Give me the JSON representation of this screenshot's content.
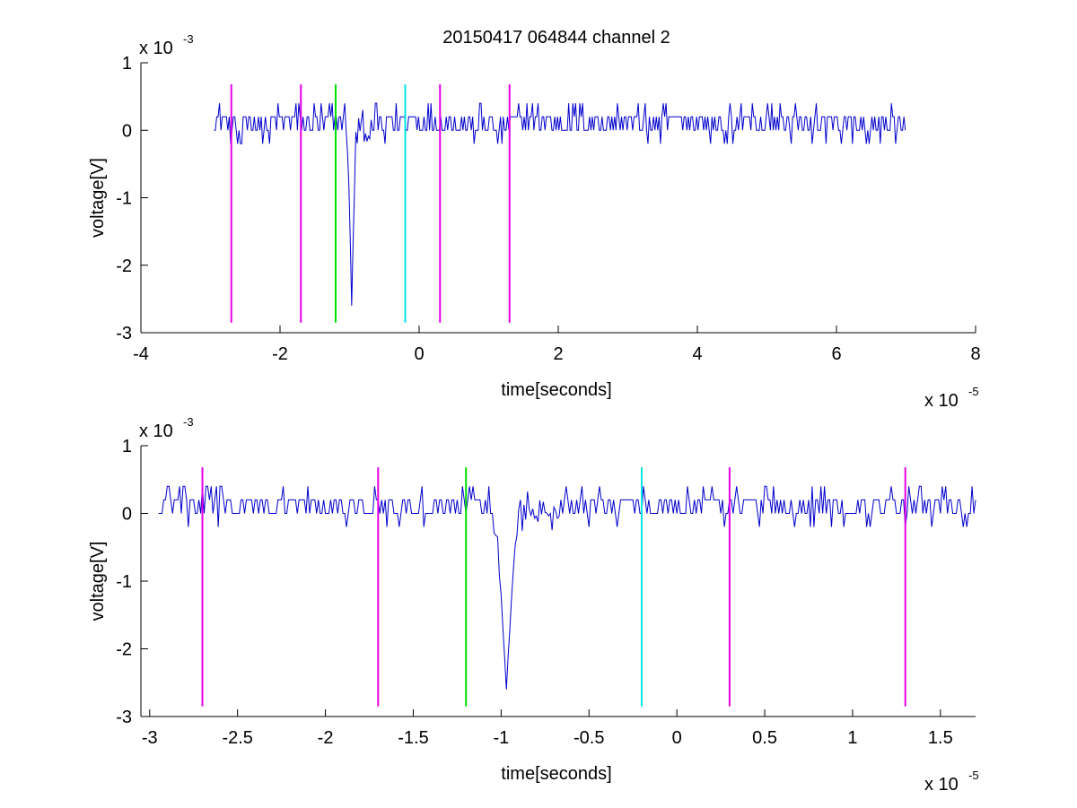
{
  "title": "20150417 064844 channel 2",
  "chart_data": [
    {
      "type": "line",
      "title": "20150417 064844 channel 2",
      "xlabel": "time[seconds]",
      "ylabel": "voltage[V]",
      "x_exponent_base": "x 10",
      "x_exponent": "-5",
      "y_exponent_base": "x 10",
      "y_exponent": "-3",
      "xlim": [
        -4,
        8
      ],
      "ylim": [
        -3,
        1
      ],
      "xticks": [
        -4,
        -2,
        0,
        2,
        4,
        6,
        8
      ],
      "xtick_labels": [
        "-4",
        "-2",
        "0",
        "2",
        "4",
        "6",
        "8"
      ],
      "yticks": [
        -3,
        -2,
        -1,
        0,
        1
      ],
      "ytick_labels": [
        "-3",
        "-2",
        "-1",
        "0",
        "1"
      ],
      "signal": {
        "color": "#0000cc",
        "x_range": [
          -2.95,
          7.0
        ],
        "baseline": 0.1,
        "noise_levels": [
          0,
          0.2,
          0.4,
          -0.2
        ],
        "spike": {
          "x": -0.97,
          "min": -2.6
        }
      },
      "markers": [
        {
          "x": -2.7,
          "color": "#e600e6"
        },
        {
          "x": -1.7,
          "color": "#e600e6"
        },
        {
          "x": -1.2,
          "color": "#00dd00"
        },
        {
          "x": -0.2,
          "color": "#00e6e6"
        },
        {
          "x": 0.3,
          "color": "#e600e6"
        },
        {
          "x": 1.3,
          "color": "#e600e6"
        }
      ],
      "marker_y_range": [
        -2.85,
        0.68
      ]
    },
    {
      "type": "line",
      "title": "",
      "xlabel": "time[seconds]",
      "ylabel": "voltage[V]",
      "x_exponent_base": "x 10",
      "x_exponent": "-5",
      "y_exponent_base": "x 10",
      "y_exponent": "-3",
      "xlim": [
        -3.05,
        1.7
      ],
      "ylim": [
        -3,
        1
      ],
      "xticks": [
        -3,
        -2.5,
        -2,
        -1.5,
        -1,
        -0.5,
        0,
        0.5,
        1,
        1.5
      ],
      "xtick_labels": [
        "-3",
        "-2.5",
        "-2",
        "-1.5",
        "-1",
        "-0.5",
        "0",
        "0.5",
        "1",
        "1.5"
      ],
      "yticks": [
        -3,
        -2,
        -1,
        0,
        1
      ],
      "ytick_labels": [
        "-3",
        "-2",
        "-1",
        "0",
        "1"
      ],
      "signal": {
        "color": "#0000cc",
        "x_range": [
          -2.95,
          1.7
        ],
        "baseline": 0.1,
        "noise_levels": [
          0,
          0.2,
          0.4,
          -0.2
        ],
        "spike": {
          "x": -0.97,
          "min": -2.6
        }
      },
      "markers": [
        {
          "x": -2.7,
          "color": "#e600e6"
        },
        {
          "x": -1.7,
          "color": "#e600e6"
        },
        {
          "x": -1.2,
          "color": "#00dd00"
        },
        {
          "x": -0.2,
          "color": "#00e6e6"
        },
        {
          "x": 0.3,
          "color": "#e600e6"
        },
        {
          "x": 1.3,
          "color": "#e600e6"
        }
      ],
      "marker_y_range": [
        -2.85,
        0.68
      ]
    }
  ]
}
